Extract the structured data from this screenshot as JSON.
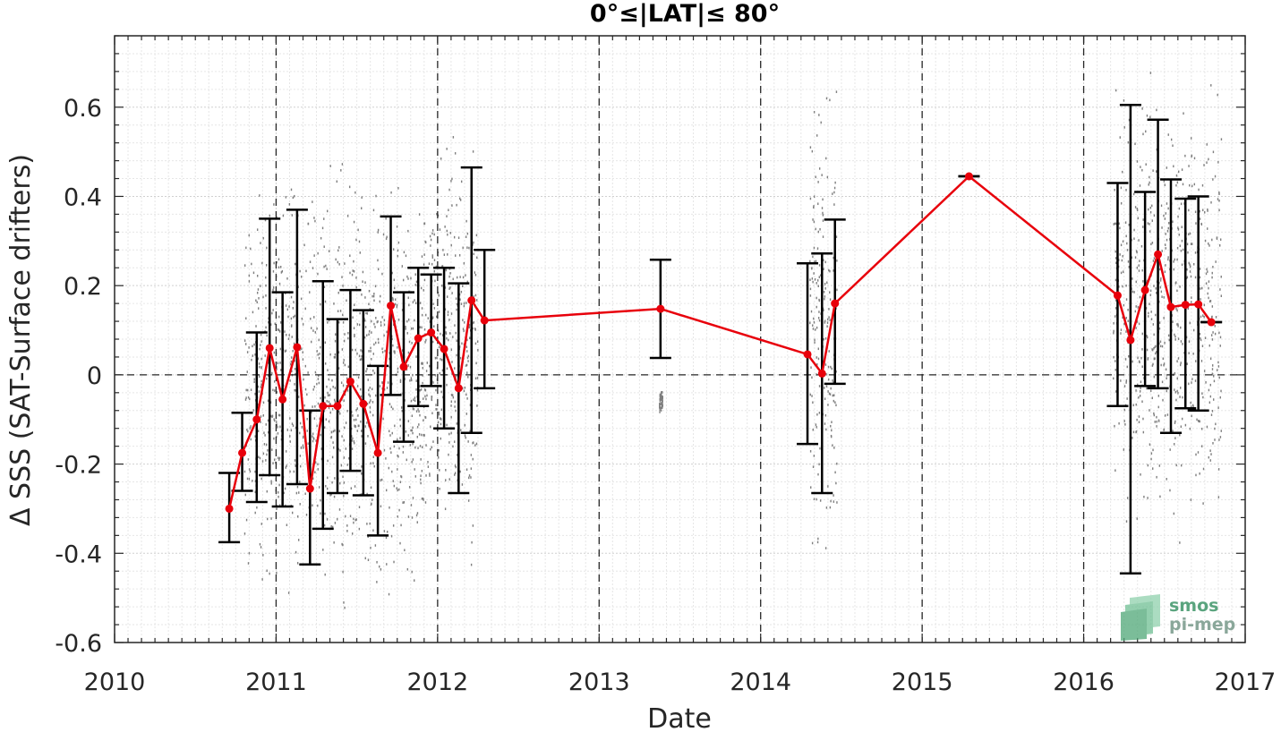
{
  "chart_data": {
    "type": "line",
    "title": "0°≤|LAT|≤ 80°",
    "xlabel": "Date",
    "ylabel": "Δ SSS (SAT-Surface drifters)",
    "xlim": [
      2010,
      2017
    ],
    "ylim": [
      -0.6,
      0.76
    ],
    "x_ticks": [
      "2010",
      "2011",
      "2012",
      "2013",
      "2014",
      "2015",
      "2016",
      "2017"
    ],
    "y_ticks": [
      "-0.6",
      "-0.4",
      "-0.2",
      "0",
      "0.2",
      "0.4",
      "0.6"
    ],
    "grid": true,
    "year_dividers": [
      2011,
      2012,
      2013,
      2014,
      2015,
      2016
    ],
    "zero_line": 0,
    "colors": {
      "line": "#e8000b",
      "errorbar": "#000000",
      "scatter": "#7f7f7f",
      "logo": "#5aa47e"
    },
    "series": [
      {
        "x": [
          2010.71,
          2010.79,
          2010.88,
          2010.96,
          2011.04,
          2011.13,
          2011.21,
          2011.29,
          2011.38,
          2011.46,
          2011.54,
          2011.63,
          2011.71,
          2011.79,
          2011.88,
          2011.96,
          2012.04,
          2012.13,
          2012.21,
          2012.29,
          2013.38,
          2014.29,
          2014.38,
          2014.46,
          2015.29,
          2016.21,
          2016.29,
          2016.38,
          2016.46,
          2016.54,
          2016.63,
          2016.71,
          2016.79
        ],
        "y": [
          -0.3,
          -0.175,
          -0.1,
          0.06,
          -0.055,
          0.062,
          -0.255,
          -0.07,
          -0.07,
          -0.015,
          -0.065,
          -0.175,
          0.155,
          0.018,
          0.082,
          0.095,
          0.058,
          -0.03,
          0.167,
          0.122,
          0.148,
          0.046,
          0.003,
          0.16,
          0.445,
          0.178,
          0.078,
          0.19,
          0.27,
          0.152,
          0.157,
          0.158,
          0.118
        ],
        "err_low": [
          -0.375,
          -0.26,
          -0.285,
          -0.225,
          -0.295,
          -0.245,
          -0.425,
          -0.345,
          -0.265,
          -0.215,
          -0.27,
          -0.36,
          -0.045,
          -0.15,
          -0.07,
          -0.025,
          -0.12,
          -0.265,
          -0.13,
          -0.03,
          0.038,
          -0.155,
          -0.265,
          -0.02,
          0.445,
          -0.07,
          -0.445,
          -0.025,
          -0.03,
          -0.13,
          -0.075,
          -0.08,
          0.118
        ],
        "err_high": [
          -0.22,
          -0.085,
          0.095,
          0.35,
          0.185,
          0.37,
          -0.08,
          0.21,
          0.125,
          0.19,
          0.145,
          0.02,
          0.355,
          0.185,
          0.24,
          0.225,
          0.24,
          0.205,
          0.465,
          0.28,
          0.258,
          0.25,
          0.272,
          0.348,
          0.445,
          0.43,
          0.605,
          0.41,
          0.572,
          0.438,
          0.395,
          0.4,
          0.118
        ]
      }
    ],
    "scatter_clusters": [
      {
        "x": [
          2010.8,
          2011.95
        ],
        "y": [
          -0.6,
          0.55
        ]
      },
      {
        "x": [
          2011.95,
          2012.25
        ],
        "y": [
          -0.5,
          0.65
        ]
      },
      {
        "x": [
          2013.37,
          2013.39
        ],
        "y": [
          -0.09,
          -0.02
        ]
      },
      {
        "x": [
          2014.3,
          2014.47
        ],
        "y": [
          -0.56,
          0.76
        ]
      },
      {
        "x": [
          2016.18,
          2016.85
        ],
        "y": [
          -0.45,
          0.76
        ]
      }
    ]
  },
  "logo": {
    "line1": "smos",
    "line2": "pi-mep"
  }
}
